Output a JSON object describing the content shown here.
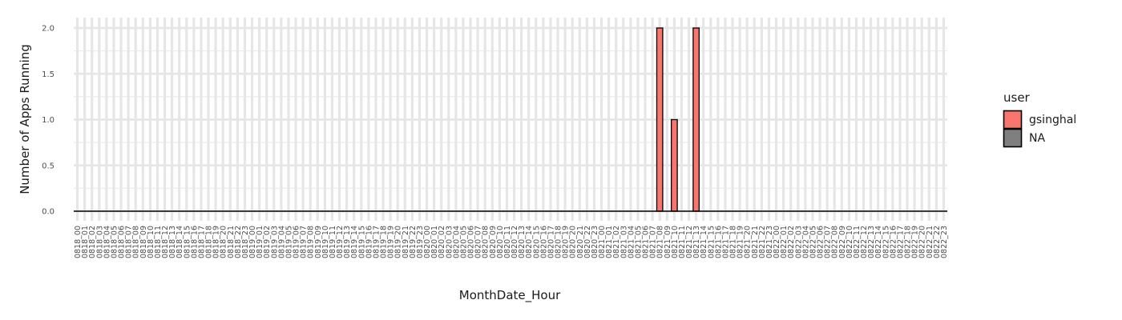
{
  "chart_data": {
    "type": "bar",
    "xlabel": "MonthDate_Hour",
    "ylabel": "Number of Apps Running",
    "ylim": [
      0,
      2
    ],
    "yticks": [
      "0.0",
      "0.5",
      "1.0",
      "1.5",
      "2.0"
    ],
    "grid": true,
    "legend_position": "right",
    "legend": {
      "title": "user",
      "entries": [
        {
          "label": "gsinghal",
          "color": "#F8766D"
        },
        {
          "label": "NA",
          "color": "#7F7F7F"
        }
      ]
    },
    "categories": [
      "0818_00",
      "0818_01",
      "0818_02",
      "0818_03",
      "0818_04",
      "0818_05",
      "0818_06",
      "0818_07",
      "0818_08",
      "0818_09",
      "0818_10",
      "0818_11",
      "0818_12",
      "0818_13",
      "0818_14",
      "0818_15",
      "0818_16",
      "0818_17",
      "0818_18",
      "0818_19",
      "0818_20",
      "0818_21",
      "0818_22",
      "0818_23",
      "0819_00",
      "0819_01",
      "0819_02",
      "0819_03",
      "0819_04",
      "0819_05",
      "0819_06",
      "0819_07",
      "0819_08",
      "0819_09",
      "0819_10",
      "0819_11",
      "0819_12",
      "0819_13",
      "0819_14",
      "0819_15",
      "0819_16",
      "0819_17",
      "0819_18",
      "0819_19",
      "0819_20",
      "0819_21",
      "0819_22",
      "0819_23",
      "0820_00",
      "0820_01",
      "0820_02",
      "0820_03",
      "0820_04",
      "0820_05",
      "0820_06",
      "0820_07",
      "0820_08",
      "0820_09",
      "0820_10",
      "0820_11",
      "0820_12",
      "0820_13",
      "0820_14",
      "0820_15",
      "0820_16",
      "0820_17",
      "0820_18",
      "0820_19",
      "0820_20",
      "0820_21",
      "0820_22",
      "0820_23",
      "0821_00",
      "0821_01",
      "0821_02",
      "0821_03",
      "0821_04",
      "0821_05",
      "0821_06",
      "0821_07",
      "0821_08",
      "0821_09",
      "0821_10",
      "0821_11",
      "0821_12",
      "0821_13",
      "0821_14",
      "0821_15",
      "0821_16",
      "0821_17",
      "0821_18",
      "0821_19",
      "0821_20",
      "0821_21",
      "0821_22",
      "0821_23",
      "0822_00",
      "0822_01",
      "0822_02",
      "0822_03",
      "0822_04",
      "0822_05",
      "0822_06",
      "0822_07",
      "0822_08",
      "0822_09",
      "0822_10",
      "0822_11",
      "0822_12",
      "0822_13",
      "0822_14",
      "0822_15",
      "0822_16",
      "0822_17",
      "0822_18",
      "0822_19",
      "0822_20",
      "0822_21",
      "0822_22",
      "0822_23"
    ],
    "series": [
      {
        "name": "gsinghal",
        "color": "#F8766D",
        "values": {
          "0821_08": 2,
          "0821_10": 1,
          "0821_13": 2
        }
      }
    ]
  }
}
